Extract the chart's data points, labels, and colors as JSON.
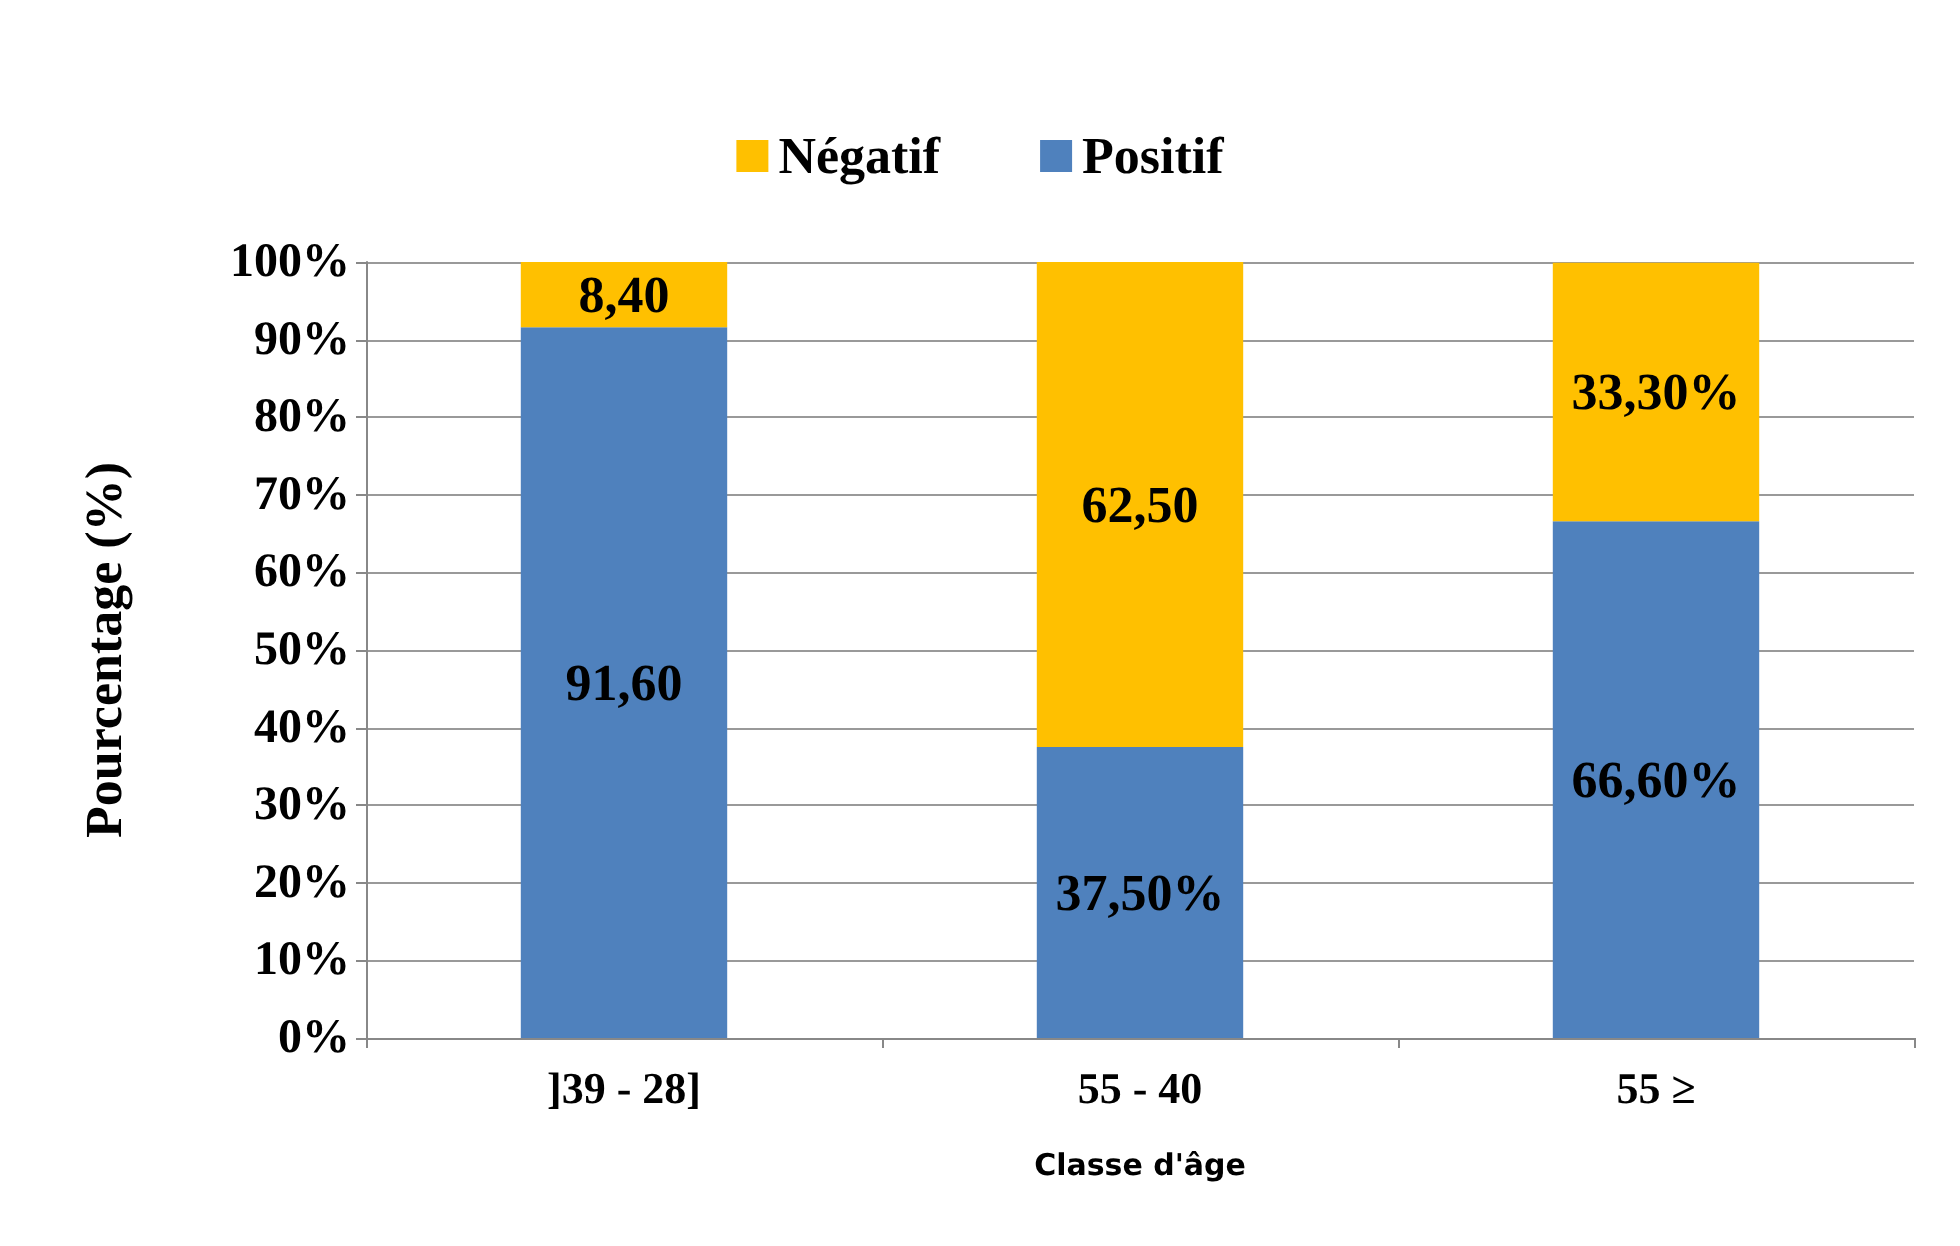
{
  "chart_data": {
    "type": "bar",
    "stacked": true,
    "xlabel": "Classe d'âge",
    "ylabel": "Pourcentage (%)",
    "categories": [
      "]39 - 28]",
      "55 - 40",
      "55 ≥"
    ],
    "series": [
      {
        "name": "Positif",
        "color": "#4f81bd",
        "values": [
          91.6,
          37.5,
          66.6
        ],
        "value_labels": [
          "91,60",
          "37,50%",
          "66,60%"
        ]
      },
      {
        "name": "Négatif",
        "color": "#ffc000",
        "values": [
          8.4,
          62.5,
          33.3
        ],
        "value_labels": [
          "8,40",
          "62,50",
          "33,30%"
        ]
      }
    ],
    "ylim": [
      0,
      100
    ],
    "yticks": [
      {
        "value": 0,
        "label": "0%"
      },
      {
        "value": 10,
        "label": "10%"
      },
      {
        "value": 20,
        "label": "20%"
      },
      {
        "value": 30,
        "label": "30%"
      },
      {
        "value": 40,
        "label": "40%"
      },
      {
        "value": 50,
        "label": "50%"
      },
      {
        "value": 60,
        "label": "60%"
      },
      {
        "value": 70,
        "label": "70%"
      },
      {
        "value": 80,
        "label": "80%"
      },
      {
        "value": 90,
        "label": "90%"
      },
      {
        "value": 100,
        "label": "100%"
      }
    ],
    "grid": "y",
    "legend": "top"
  }
}
